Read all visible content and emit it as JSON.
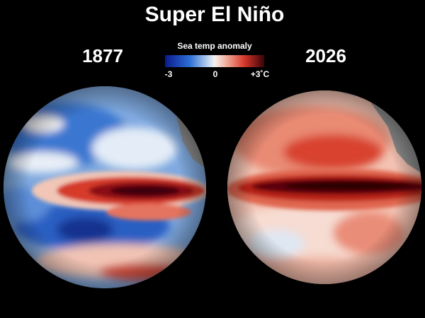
{
  "header": {
    "title": "Super El Niño"
  },
  "globes": [
    {
      "label": "1877"
    },
    {
      "label": "2026"
    }
  ],
  "legend": {
    "title": "Sea temp anomaly",
    "ticks": [
      "-3",
      "0",
      "+3˚C"
    ]
  }
}
